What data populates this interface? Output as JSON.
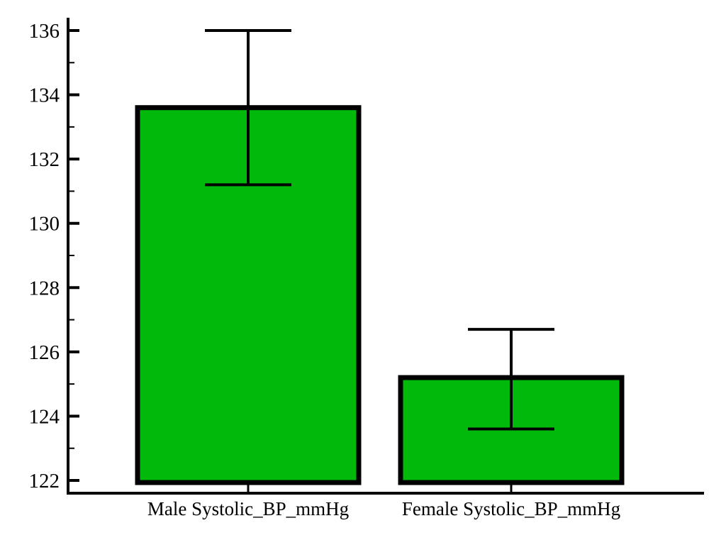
{
  "page": {
    "background_color": "#ffffff"
  },
  "chart_data": {
    "type": "bar",
    "title": "",
    "xlabel": "",
    "ylabel": "",
    "categories": [
      "Male Systolic_BP_mmHg",
      "Female Systolic_BP_mmHg"
    ],
    "values": [
      133.6,
      125.2
    ],
    "error_bars": {
      "upper": [
        136.0,
        126.7
      ],
      "lower": [
        131.2,
        123.6
      ]
    },
    "ylim": [
      122,
      136.5
    ],
    "yticks_major": [
      122,
      124,
      126,
      128,
      130,
      132,
      134,
      136
    ],
    "yticks_minor": [
      123,
      125,
      127,
      129,
      131,
      133,
      135
    ],
    "grid": false,
    "legend": false,
    "bar_fill_color": "#00b90b",
    "bar_border_color": "#000000",
    "error_bar_color": "#000000",
    "axis_color": "#000000",
    "text_color": "#000000"
  }
}
